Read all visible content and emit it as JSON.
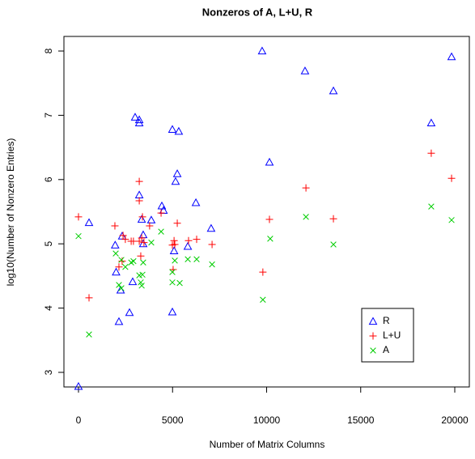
{
  "chart_data": {
    "type": "scatter",
    "title": "Nonzeros of A, L+U, R",
    "x_label": "Number of Matrix Columns",
    "y_label": "log10(Number of Nonzero Entries)",
    "xlim": [
      -774,
      20774
    ],
    "ylim": [
      2.773,
      8.227
    ],
    "xticks": [
      0,
      5000,
      10000,
      15000,
      20000
    ],
    "yticks": [
      3,
      4,
      5,
      6,
      7,
      8
    ],
    "legend_position": "bottom-right",
    "series": [
      {
        "name": "R",
        "color": "#0000ff",
        "marker": "triangle",
        "x": [
          0,
          560,
          2150,
          2000,
          1950,
          2240,
          2320,
          2710,
          2880,
          3010,
          3230,
          3230,
          3230,
          3360,
          3440,
          3440,
          3870,
          4430,
          4520,
          4990,
          5330,
          4990,
          5080,
          5160,
          5250,
          5810,
          6240,
          7050,
          9760,
          10150,
          12040,
          13550,
          18750,
          19830
        ],
        "values": [
          2.78,
          5.33,
          3.79,
          4.56,
          4.98,
          4.28,
          5.12,
          3.93,
          4.41,
          6.97,
          6.93,
          6.88,
          5.76,
          5.38,
          5.0,
          5.14,
          5.37,
          5.59,
          5.52,
          6.78,
          6.75,
          3.94,
          4.89,
          5.97,
          6.09,
          4.96,
          5.64,
          5.24,
          8.0,
          6.27,
          7.69,
          7.38,
          6.88,
          7.91
        ]
      },
      {
        "name": "L+U",
        "color": "#ff0000",
        "marker": "plus",
        "x": [
          0,
          560,
          1935,
          2150,
          2320,
          2370,
          2490,
          2800,
          2920,
          3230,
          3230,
          3230,
          3310,
          3360,
          3400,
          3480,
          3780,
          4390,
          4990,
          5080,
          5120,
          5250,
          5030,
          5850,
          6280,
          7100,
          9800,
          10150,
          12090,
          13550,
          18750,
          19830
        ],
        "values": [
          5.42,
          4.16,
          5.28,
          4.64,
          4.73,
          5.13,
          5.07,
          5.04,
          5.04,
          5.97,
          5.67,
          5.04,
          4.81,
          5.09,
          5.42,
          5.02,
          5.28,
          5.48,
          4.98,
          5.05,
          4.99,
          5.32,
          4.6,
          5.05,
          5.07,
          4.99,
          4.56,
          5.38,
          5.87,
          5.39,
          6.41,
          6.02
        ]
      },
      {
        "name": "A",
        "color": "#00cd00",
        "marker": "cross",
        "x": [
          0,
          560,
          1980,
          2150,
          2280,
          2280,
          2490,
          2800,
          2920,
          3230,
          3310,
          3360,
          3400,
          3440,
          3870,
          4390,
          4990,
          4990,
          5120,
          5380,
          5810,
          6280,
          7100,
          9800,
          10190,
          12090,
          13550,
          18750,
          19830
        ],
        "values": [
          5.12,
          3.59,
          4.85,
          4.36,
          4.31,
          4.75,
          4.64,
          4.71,
          4.73,
          4.51,
          4.4,
          4.35,
          4.52,
          4.71,
          5.02,
          5.19,
          4.56,
          4.4,
          4.74,
          4.39,
          4.76,
          4.76,
          4.68,
          4.13,
          5.08,
          5.42,
          4.99,
          5.58,
          5.37
        ]
      }
    ]
  }
}
